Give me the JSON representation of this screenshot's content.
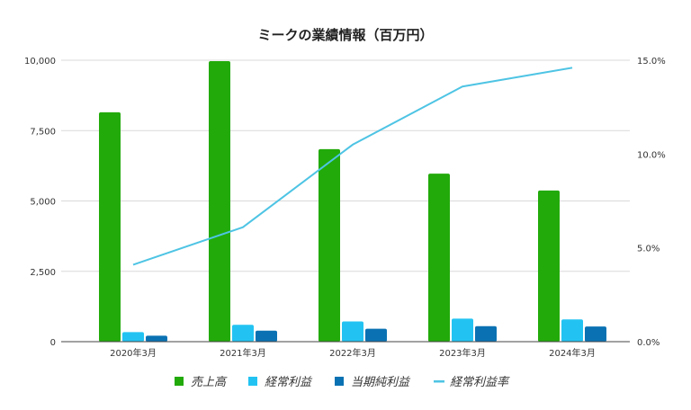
{
  "chart_data": {
    "type": "bar+line",
    "title": "ミークの業績情報（百万円）",
    "categories": [
      "2020年3月",
      "2021年3月",
      "2022年3月",
      "2023年3月",
      "2024年3月"
    ],
    "series": [
      {
        "name": "売上高",
        "type": "bar",
        "axis": "left",
        "color": "#22aa0a",
        "values": [
          8150,
          9970,
          6840,
          5970,
          5370
        ]
      },
      {
        "name": "経常利益",
        "type": "bar",
        "axis": "left",
        "color": "#22c3f2",
        "values": [
          340,
          600,
          720,
          820,
          790
        ]
      },
      {
        "name": "当期純利益",
        "type": "bar",
        "axis": "left",
        "color": "#0a72b3",
        "values": [
          210,
          390,
          460,
          550,
          540
        ]
      },
      {
        "name": "経常利益率",
        "type": "line",
        "axis": "right",
        "color": "#4ec4e4",
        "values": [
          4.1,
          6.1,
          10.5,
          13.6,
          14.6
        ]
      }
    ],
    "left_axis": {
      "ylim": [
        0,
        10000
      ],
      "ticks": [
        "0",
        "2,500",
        "5,000",
        "7,500",
        "10,000"
      ]
    },
    "right_axis": {
      "ylim": [
        0,
        15
      ],
      "ticks": [
        "0.0%",
        "5.0%",
        "10.0%",
        "15.0%"
      ]
    },
    "grid": true,
    "legend": "bottom"
  }
}
